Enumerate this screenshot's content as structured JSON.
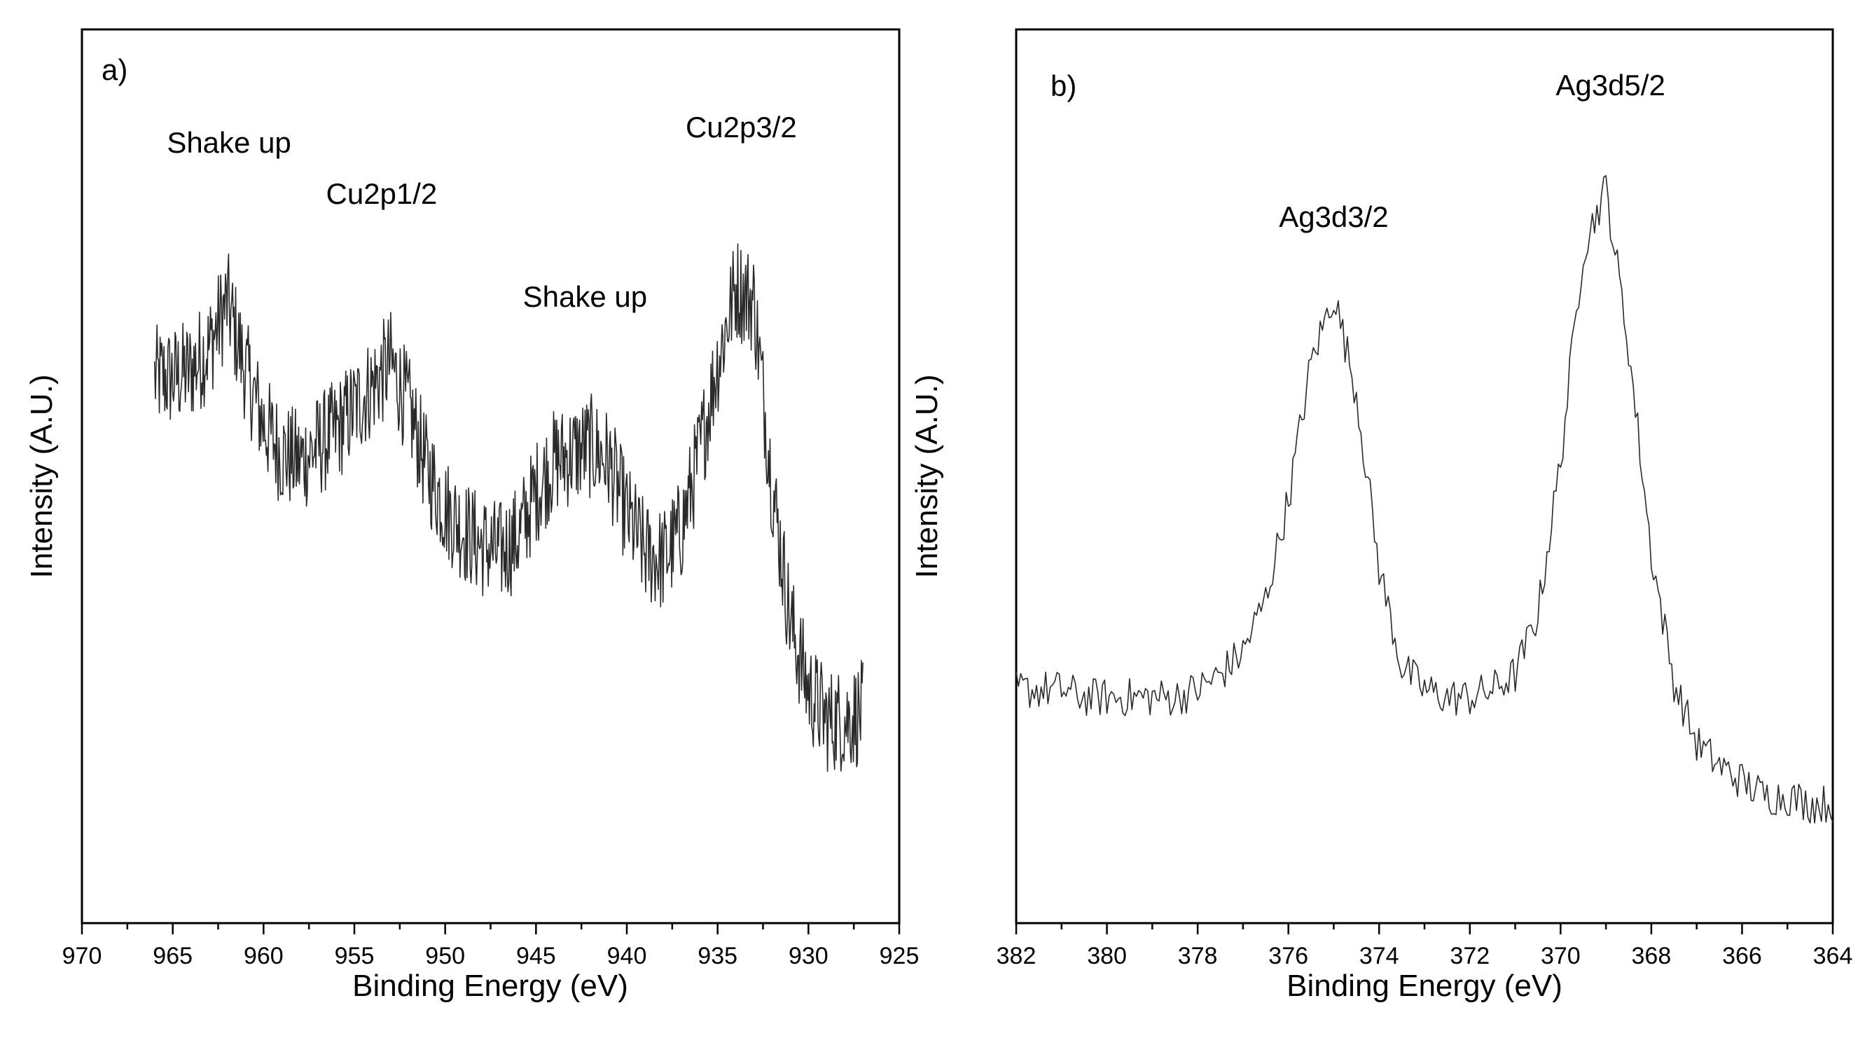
{
  "chart_data": [
    {
      "type": "line",
      "panel_label": "a)",
      "xlabel": "Binding Energy (eV)",
      "ylabel": "Intensity (A.U.)",
      "xlim": [
        970,
        925
      ],
      "ylim": [
        0,
        100
      ],
      "x_reversed": true,
      "y_ticks_shown": false,
      "grid": false,
      "xticks": [
        "970",
        "965",
        "960",
        "955",
        "950",
        "945",
        "940",
        "935",
        "930",
        "925"
      ],
      "annotations": [
        {
          "text": "Shake up",
          "x": 961.9
        },
        {
          "text": "Cu2p1/2",
          "x": 953.5
        },
        {
          "text": "Shake up",
          "x": 942.3
        },
        {
          "text": "Cu2p3/2",
          "x": 933.7
        }
      ],
      "series": [
        {
          "x": [
            966,
            965,
            964,
            963,
            962,
            961,
            960,
            959,
            958,
            957,
            956,
            955,
            954,
            953,
            952,
            951,
            950,
            949,
            948,
            947,
            946,
            945,
            944,
            943,
            942,
            941,
            940,
            939,
            938,
            937,
            936,
            935,
            934,
            933,
            932,
            931,
            930,
            929,
            928,
            927
          ],
          "y": [
            68,
            68,
            69,
            72,
            78,
            69,
            62,
            58,
            57,
            59,
            61,
            64,
            67,
            70,
            64,
            56,
            51,
            48,
            46,
            45,
            47,
            53,
            57,
            58,
            59,
            57,
            50,
            45,
            44,
            48,
            58,
            70,
            80,
            78,
            54,
            36,
            27,
            23,
            23,
            24
          ]
        }
      ]
    },
    {
      "type": "line",
      "panel_label": "b)",
      "xlabel": "Binding Energy (eV)",
      "ylabel": "Intensity (A.U.)",
      "xlim": [
        382,
        364
      ],
      "ylim": [
        0,
        100
      ],
      "x_reversed": true,
      "y_ticks_shown": false,
      "grid": false,
      "xticks": [
        "382",
        "380",
        "378",
        "376",
        "374",
        "372",
        "370",
        "368",
        "366",
        "364"
      ],
      "annotations": [
        {
          "text": "Ag3d3/2",
          "x": 375.0
        },
        {
          "text": "Ag3d5/2",
          "x": 368.9
        }
      ],
      "series": [
        {
          "x": [
            382.0,
            381.5,
            381.0,
            380.5,
            380.0,
            379.5,
            379.0,
            378.5,
            378.0,
            377.5,
            377.0,
            376.5,
            376.0,
            375.5,
            375.0,
            374.5,
            374.0,
            373.5,
            373.0,
            372.5,
            372.0,
            371.5,
            371.0,
            370.5,
            370.0,
            369.5,
            369.0,
            368.5,
            368.0,
            367.5,
            367.0,
            366.5,
            366.0,
            365.5,
            365.0,
            364.5,
            364.0
          ],
          "y": [
            27,
            27,
            27,
            26,
            26,
            26,
            26,
            26,
            27,
            29,
            32,
            39,
            52,
            70,
            79,
            66,
            43,
            30,
            27,
            26,
            26,
            27,
            29,
            37,
            57,
            85,
            93,
            72,
            45,
            28,
            20,
            17,
            15,
            13,
            13,
            12,
            12
          ]
        }
      ]
    }
  ]
}
